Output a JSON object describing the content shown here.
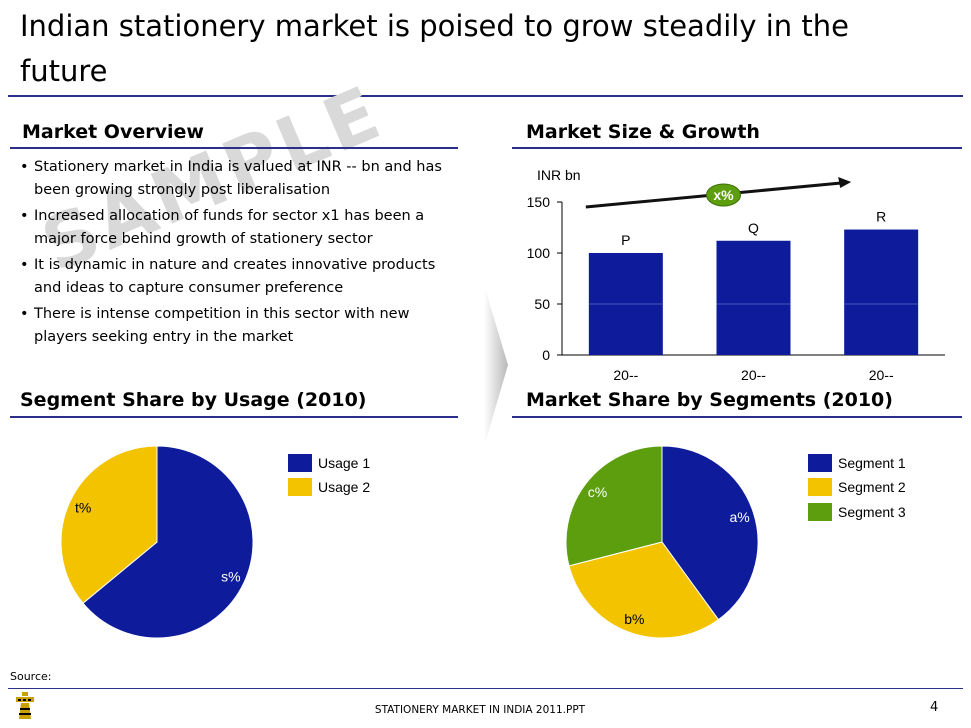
{
  "slide": {
    "title": "Indian stationery market is poised to grow steadily in the future",
    "watermark": "SAMPLE",
    "source_label": "Source:",
    "footer_title": "STATIONERY MARKET IN INDIA 2011.PPT",
    "page_number": "4"
  },
  "colors": {
    "rule": "#2b2f8a",
    "blue": "#0e1c9c",
    "yellow": "#f3c300",
    "green": "#5c9e0e",
    "watermark": "#d7d7d7"
  },
  "market_overview": {
    "heading": "Market Overview",
    "bullets": [
      "Stationery market  in India is valued at INR -- bn and has been growing strongly post liberalisation",
      "Increased allocation of funds for sector x1 has been a major force behind growth of stationery sector",
      "It is dynamic in nature and creates innovative products and ideas to capture consumer preference",
      "There is intense competition in this sector with new players seeking entry in the market"
    ]
  },
  "market_size": {
    "heading": "Market Size & Growth"
  },
  "segment_usage": {
    "heading": "Segment Share by Usage (2010)"
  },
  "segment_share": {
    "heading": "Market Share by Segments (2010)"
  },
  "chart_data": [
    {
      "type": "bar",
      "title": "Market Size & Growth",
      "ylabel": "INR bn",
      "categories": [
        "20--",
        "20--",
        "20--"
      ],
      "values": [
        100,
        112,
        123
      ],
      "data_labels": [
        "P",
        "Q",
        "R"
      ],
      "ylim": [
        0,
        150
      ],
      "yticks": [
        0,
        50,
        100,
        150
      ],
      "growth_annotation": "x%",
      "color": "#0e1c9c"
    },
    {
      "type": "pie",
      "title": "Segment Share by Usage (2010)",
      "slices": [
        {
          "name": "Usage 1",
          "value": 64,
          "label": "s%",
          "color": "#0e1c9c"
        },
        {
          "name": "Usage 2",
          "value": 36,
          "label": "t%",
          "color": "#f3c300"
        }
      ]
    },
    {
      "type": "pie",
      "title": "Market Share by Segments (2010)",
      "slices": [
        {
          "name": "Segment 1",
          "value": 40,
          "label": "a%",
          "color": "#0e1c9c"
        },
        {
          "name": "Segment 2",
          "value": 31,
          "label": "b%",
          "color": "#f3c300"
        },
        {
          "name": "Segment 3",
          "value": 29,
          "label": "c%",
          "color": "#5c9e0e"
        }
      ]
    }
  ]
}
